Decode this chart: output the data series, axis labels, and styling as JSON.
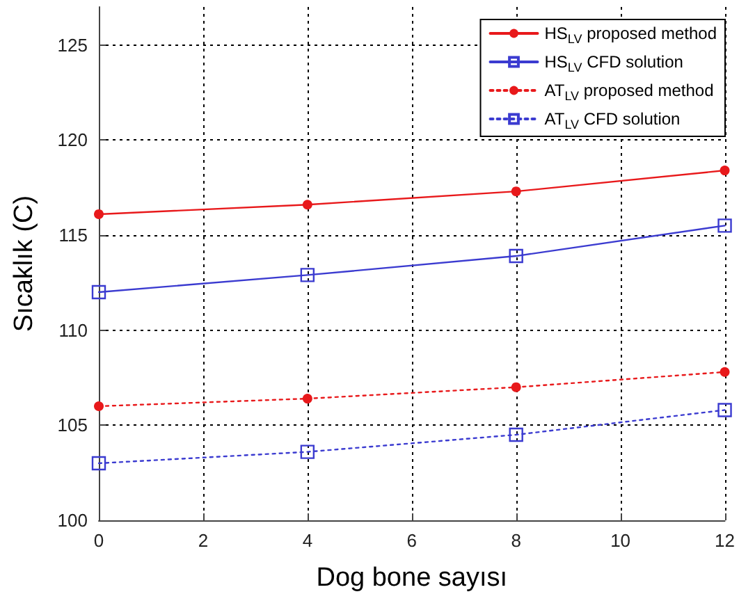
{
  "chart_data": {
    "type": "line",
    "xlabel": "Dog bone sayısı",
    "ylabel": "Sıcaklık (C)",
    "x": [
      0,
      4,
      8,
      12
    ],
    "series": [
      {
        "name": "HS$_{LV}$ proposed method",
        "color": "#e8191b",
        "values": [
          116.1,
          116.6,
          117.3,
          118.4
        ],
        "marker": "circle",
        "line_style": "solid"
      },
      {
        "name": "HS$_{LV}$ CFD solution",
        "color": "#3b3bd0",
        "values": [
          112.0,
          112.9,
          113.9,
          115.5
        ],
        "marker": "square",
        "line_style": "solid"
      },
      {
        "name": "AT$_{LV}$ proposed method",
        "color": "#e8191b",
        "values": [
          106.0,
          106.4,
          107.0,
          107.8
        ],
        "marker": "circle",
        "line_style": "dotted"
      },
      {
        "name": "AT$_{LV}$ CFD solution",
        "color": "#3b3bd0",
        "values": [
          103.0,
          103.6,
          104.5,
          105.8
        ],
        "marker": "square",
        "line_style": "dotted"
      }
    ],
    "xlim": [
      0,
      12
    ],
    "xticks": [
      0,
      2,
      4,
      6,
      8,
      10,
      12
    ],
    "ylim": [
      100,
      127
    ],
    "yticks": [
      100,
      105,
      110,
      115,
      120,
      125
    ],
    "grid": true,
    "legend": "top right"
  }
}
